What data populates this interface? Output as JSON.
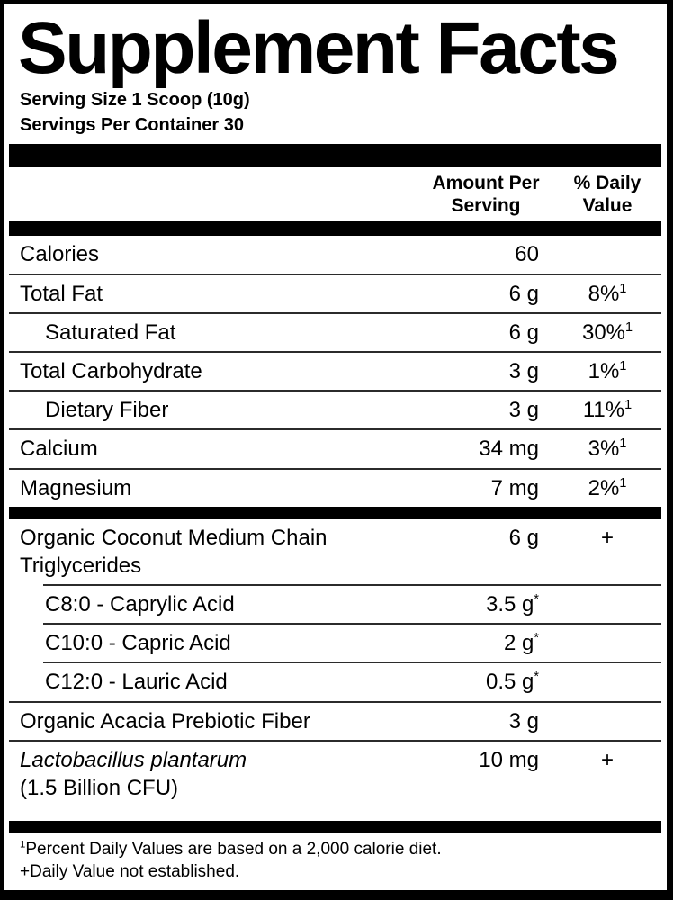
{
  "header": {
    "title": "Supplement Facts",
    "serving_size": "Serving Size 1 Scoop (10g)",
    "servings_per_container": "Servings Per Container 30",
    "col_amount": "Amount Per Serving",
    "col_dv": "% Daily Value"
  },
  "body": [
    {
      "type": "row",
      "name": "Calories",
      "amount": "60",
      "amount_sup": "",
      "dv": "",
      "dv_sup": "",
      "indent": false,
      "rule": "none"
    },
    {
      "type": "row",
      "name": "Total Fat",
      "amount": "6 g",
      "amount_sup": "",
      "dv": "8%",
      "dv_sup": "1",
      "indent": false,
      "rule": "full"
    },
    {
      "type": "row",
      "name": "Saturated Fat",
      "amount": "6 g",
      "amount_sup": "",
      "dv": "30%",
      "dv_sup": "1",
      "indent": true,
      "rule": "full"
    },
    {
      "type": "row",
      "name": "Total Carbohydrate",
      "amount": "3 g",
      "amount_sup": "",
      "dv": "1%",
      "dv_sup": "1",
      "indent": false,
      "rule": "full"
    },
    {
      "type": "row",
      "name": "Dietary Fiber",
      "amount": "3 g",
      "amount_sup": "",
      "dv": "11%",
      "dv_sup": "1",
      "indent": true,
      "rule": "full"
    },
    {
      "type": "row",
      "name": "Calcium",
      "amount": "34 mg",
      "amount_sup": "",
      "dv": "3%",
      "dv_sup": "1",
      "indent": false,
      "rule": "full"
    },
    {
      "type": "row",
      "name": "Magnesium",
      "amount": "7 mg",
      "amount_sup": "",
      "dv": "2%",
      "dv_sup": "1",
      "indent": false,
      "rule": "full"
    },
    {
      "type": "bar",
      "style": "mid"
    },
    {
      "type": "row",
      "name": "Organic Coconut Medium Chain Triglycerides",
      "amount": "6 g",
      "amount_sup": "",
      "dv": "+",
      "dv_sup": "",
      "indent": false,
      "rule": "none"
    },
    {
      "type": "row",
      "name": "C8:0 - Caprylic Acid",
      "amount": "3.5 g",
      "amount_sup": "*",
      "dv": "",
      "dv_sup": "",
      "indent": true,
      "rule": "indent"
    },
    {
      "type": "row",
      "name": "C10:0 - Capric Acid",
      "amount": "2 g",
      "amount_sup": "*",
      "dv": "",
      "dv_sup": "",
      "indent": true,
      "rule": "indent"
    },
    {
      "type": "row",
      "name": "C12:0 - Lauric Acid",
      "amount": "0.5 g",
      "amount_sup": "*",
      "dv": "",
      "dv_sup": "",
      "indent": true,
      "rule": "indent"
    },
    {
      "type": "row",
      "name": "Organic Acacia Prebiotic Fiber",
      "amount": "3 g",
      "amount_sup": "",
      "dv": "",
      "dv_sup": "",
      "indent": false,
      "rule": "full"
    },
    {
      "type": "row",
      "name": "Lactobacillus plantarum",
      "name_italic": true,
      "name_line2": "(1.5 Billion CFU)",
      "amount": "10 mg",
      "amount_sup": "",
      "dv": "+",
      "dv_sup": "",
      "indent": false,
      "rule": "full"
    }
  ],
  "footnotes": {
    "line1_sup": "1",
    "line1": "Percent Daily Values are based on a 2,000 calorie diet.",
    "line2": "+Daily Value not established."
  },
  "colors": {
    "text": "#000000",
    "background": "#ffffff",
    "bar": "#000000",
    "rule": "#2b2b2b"
  }
}
